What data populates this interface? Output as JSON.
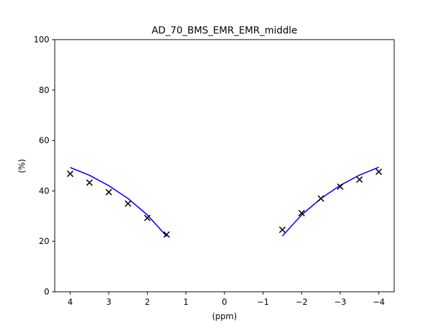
{
  "chart_data": {
    "type": "scatter",
    "title": "AD_70_BMS_EMR_EMR_middle",
    "xlabel": "(ppm)",
    "ylabel": "(%)",
    "xlim": [
      4.4,
      -4.4
    ],
    "ylim": [
      0,
      100
    ],
    "x_reversed": true,
    "xticks": [
      4,
      3,
      2,
      1,
      0,
      -1,
      -2,
      -3,
      -4
    ],
    "xtick_labels": [
      "4",
      "3",
      "2",
      "1",
      "0",
      "−1",
      "−2",
      "−3",
      "−4"
    ],
    "yticks": [
      0,
      20,
      40,
      60,
      80,
      100
    ],
    "ytick_labels": [
      "0",
      "20",
      "40",
      "60",
      "80",
      "100"
    ],
    "grid": false,
    "series": [
      {
        "kind": "markers",
        "marker": "x",
        "color": "#000000",
        "x": [
          4.0,
          3.5,
          3.0,
          2.5,
          2.0,
          1.5,
          -1.5,
          -2.0,
          -2.5,
          -3.0,
          -3.5,
          -4.0
        ],
        "y": [
          46.8,
          43.3,
          39.5,
          35.0,
          29.3,
          22.7,
          24.6,
          31.2,
          37.0,
          41.7,
          44.5,
          47.6
        ]
      },
      {
        "kind": "line",
        "color": "#0000ff",
        "segments": [
          {
            "x": [
              4.0,
              3.5,
              3.0,
              2.5,
              2.0,
              1.5
            ],
            "y": [
              49.3,
              46.2,
              42.1,
              37.0,
              30.5,
              22.0
            ]
          },
          {
            "x": [
              -1.5,
              -2.0,
              -2.5,
              -3.0,
              -3.5,
              -4.0
            ],
            "y": [
              22.1,
              30.5,
              37.0,
              42.2,
              46.3,
              49.4
            ]
          }
        ]
      }
    ]
  }
}
